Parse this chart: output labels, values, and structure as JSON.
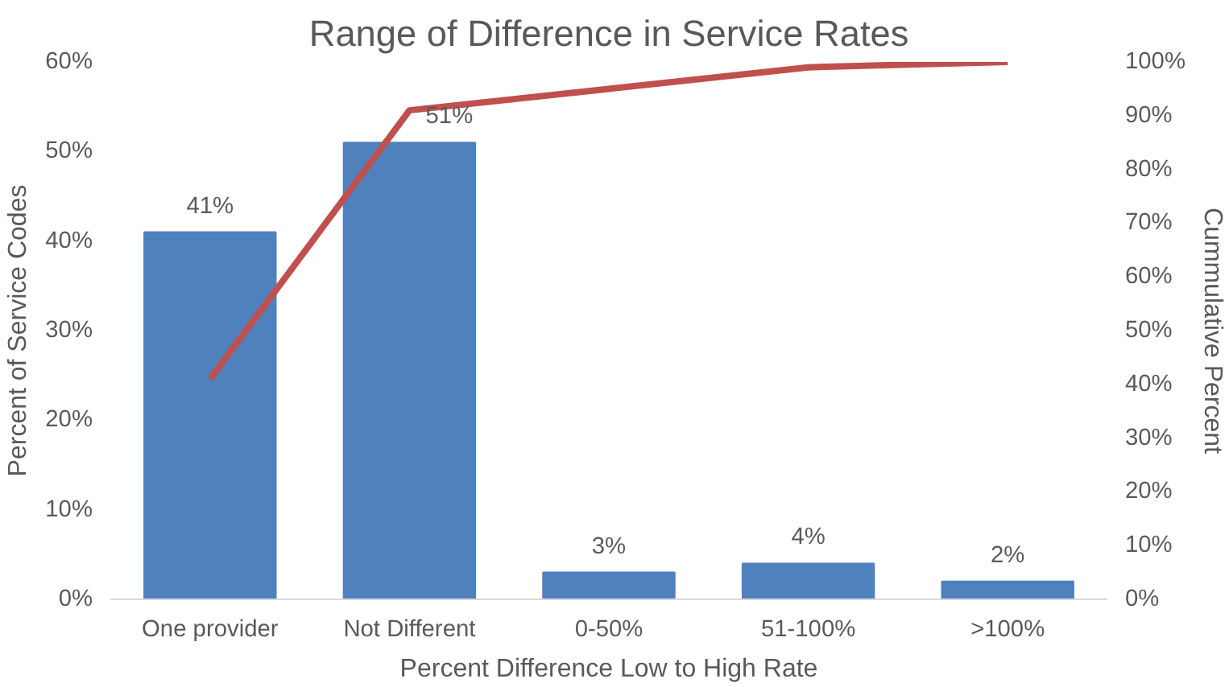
{
  "chart_data": {
    "type": "bar",
    "title": "Range of Difference in Service Rates",
    "xlabel": "Percent Difference Low to High Rate",
    "ylabel": "Percent of Service Codes",
    "y2label": "Cummulative Percent",
    "categories": [
      "One provider",
      "Not Different",
      "0-50%",
      "51-100%",
      ">100%"
    ],
    "series": [
      {
        "color": "#4f81bd",
        "values": [
          41,
          51,
          3,
          4,
          2
        ],
        "value_labels": [
          "41%",
          "51%",
          "3%",
          "4%",
          "2%"
        ]
      },
      {
        "type": "line",
        "axis": "y2",
        "color": "#c0504d",
        "values": [
          41,
          91,
          95,
          99,
          100
        ]
      }
    ],
    "ylim": [
      0,
      60
    ],
    "yticks": [
      {
        "value": 0,
        "label": "0%"
      },
      {
        "value": 10,
        "label": "10%"
      },
      {
        "value": 20,
        "label": "20%"
      },
      {
        "value": 30,
        "label": "30%"
      },
      {
        "value": 40,
        "label": "40%"
      },
      {
        "value": 50,
        "label": "50%"
      },
      {
        "value": 60,
        "label": "60%"
      }
    ],
    "y2lim": [
      0,
      100
    ],
    "y2ticks": [
      {
        "value": 0,
        "label": "0%"
      },
      {
        "value": 10,
        "label": "10%"
      },
      {
        "value": 20,
        "label": "20%"
      },
      {
        "value": 30,
        "label": "30%"
      },
      {
        "value": 40,
        "label": "40%"
      },
      {
        "value": 50,
        "label": "50%"
      },
      {
        "value": 60,
        "label": "60%"
      },
      {
        "value": 70,
        "label": "70%"
      },
      {
        "value": 80,
        "label": "80%"
      },
      {
        "value": 90,
        "label": "90%"
      },
      {
        "value": 100,
        "label": "100%"
      }
    ],
    "grid": false,
    "marker": "none",
    "line_style": "solid"
  }
}
